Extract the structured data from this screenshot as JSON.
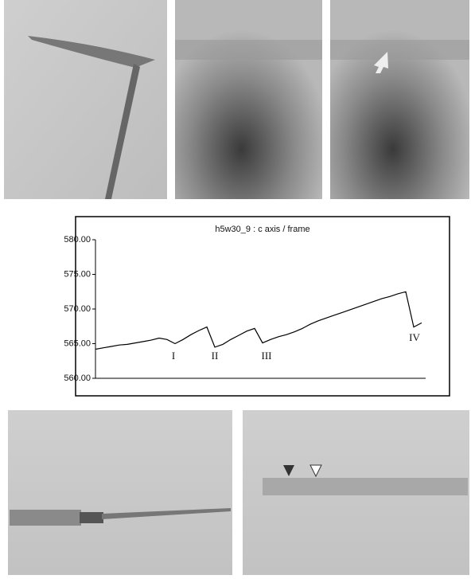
{
  "chart_data": {
    "type": "line",
    "title": "h5w30_9  :  c axis / frame",
    "series": [
      {
        "color": "#000000",
        "values": [
          564.2,
          564.4,
          564.6,
          564.8,
          564.9,
          565.1,
          565.3,
          565.5,
          565.8,
          565.6,
          565.0,
          565.6,
          566.3,
          566.9,
          567.4,
          564.5,
          564.9,
          565.6,
          566.2,
          566.8,
          567.2,
          565.1,
          565.6,
          566.0,
          566.3,
          566.7,
          567.2,
          567.8,
          568.3,
          568.7,
          569.1,
          569.5,
          569.9,
          570.3,
          570.7,
          571.1,
          571.5,
          571.8,
          572.2,
          572.5,
          567.4,
          568.0
        ]
      }
    ],
    "ylim": [
      560,
      580
    ],
    "yticks": [
      {
        "value": 560,
        "label": "560.00"
      },
      {
        "value": 565,
        "label": "565.00"
      },
      {
        "value": 570,
        "label": "570.00"
      },
      {
        "value": 575,
        "label": "575.00"
      },
      {
        "value": 580,
        "label": "580.00"
      }
    ],
    "grid": false,
    "annotations": [
      "I",
      "II",
      "III",
      "IV"
    ]
  }
}
